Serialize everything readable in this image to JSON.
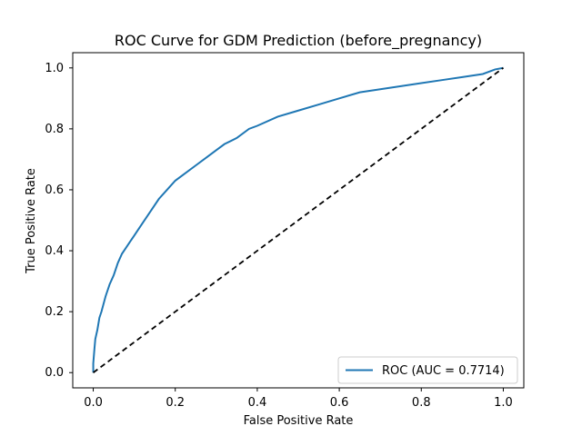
{
  "chart_data": {
    "type": "line",
    "title": "ROC Curve for GDM Prediction (before_pregnancy)",
    "xlabel": "False Positive Rate",
    "ylabel": "True Positive Rate",
    "xlim": [
      0,
      1
    ],
    "ylim": [
      0,
      1
    ],
    "xticks": [
      "0.0",
      "0.2",
      "0.4",
      "0.6",
      "0.8",
      "1.0"
    ],
    "yticks": [
      "0.0",
      "0.2",
      "0.4",
      "0.6",
      "0.8",
      "1.0"
    ],
    "grid": false,
    "legend_position": "lower-right",
    "series": [
      {
        "name": "ROC (AUC = 0.7714)",
        "color": "#1f77b4",
        "style": "solid",
        "x": [
          0.0,
          0.0,
          0.003,
          0.005,
          0.01,
          0.015,
          0.02,
          0.03,
          0.04,
          0.05,
          0.06,
          0.07,
          0.08,
          0.09,
          0.1,
          0.12,
          0.14,
          0.16,
          0.18,
          0.2,
          0.22,
          0.25,
          0.28,
          0.3,
          0.32,
          0.35,
          0.38,
          0.4,
          0.45,
          0.5,
          0.55,
          0.6,
          0.65,
          0.7,
          0.75,
          0.8,
          0.85,
          0.9,
          0.95,
          0.98,
          1.0
        ],
        "y": [
          0.0,
          0.03,
          0.08,
          0.11,
          0.14,
          0.18,
          0.2,
          0.25,
          0.29,
          0.32,
          0.36,
          0.39,
          0.41,
          0.43,
          0.45,
          0.49,
          0.53,
          0.57,
          0.6,
          0.63,
          0.65,
          0.68,
          0.71,
          0.73,
          0.75,
          0.77,
          0.8,
          0.81,
          0.84,
          0.86,
          0.88,
          0.9,
          0.92,
          0.93,
          0.94,
          0.95,
          0.96,
          0.97,
          0.98,
          0.995,
          1.0
        ]
      },
      {
        "name": "",
        "color": "#000000",
        "style": "dashed",
        "x": [
          0,
          1
        ],
        "y": [
          0,
          1
        ]
      }
    ]
  }
}
